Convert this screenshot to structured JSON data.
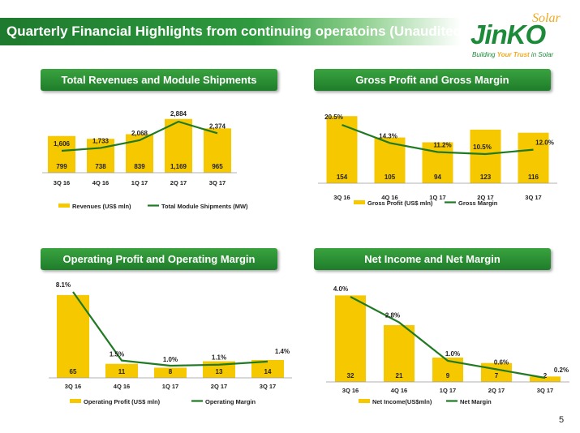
{
  "header": {
    "title": "Quarterly Financial Highlights from continuing operatoins (Unaudited)",
    "logo": {
      "solar": "Solar",
      "name": "JinKO",
      "tagline_a": "Building ",
      "tagline_b": "Your Trust",
      "tagline_c": " in Solar"
    }
  },
  "page_number": "5",
  "colors": {
    "bar": "#f6c800",
    "line": "#1f7a23",
    "header_green": "#2a8f35"
  },
  "panels": [
    {
      "heading": "Total Revenues and Module Shipments"
    },
    {
      "heading": "Gross Profit and Gross Margin"
    },
    {
      "heading": "Operating Profit and Operating Margin"
    },
    {
      "heading": "Net Income and Net Margin"
    }
  ],
  "chart_data": [
    {
      "type": "bar",
      "categories": [
        "3Q 16",
        "4Q 16",
        "1Q 17",
        "2Q 17",
        "3Q 17"
      ],
      "series": [
        {
          "name": "Revenues (US$ mln)",
          "kind": "bar",
          "values": [
            799,
            738,
            839,
            1169,
            965
          ],
          "labels": [
            "799",
            "738",
            "839",
            "1,169",
            "965"
          ]
        },
        {
          "name": "Total Module Shipments (MW)",
          "kind": "line",
          "values": [
            1606,
            1733,
            2068,
            2884,
            2374
          ],
          "labels": [
            "1,606",
            "1,733",
            "2,068",
            "2,884",
            "2,374"
          ]
        }
      ],
      "legend_position": "bottom"
    },
    {
      "type": "bar",
      "categories": [
        "3Q 16",
        "4Q 16",
        "1Q 17",
        "2Q 17",
        "3Q 17"
      ],
      "series": [
        {
          "name": "Gross Profit (US$ mln)",
          "kind": "bar",
          "values": [
            154,
            105,
            94,
            123,
            116
          ],
          "labels": [
            "154",
            "105",
            "94",
            "123",
            "116"
          ]
        },
        {
          "name": "Gross Margin",
          "kind": "line",
          "values": [
            20.5,
            14.3,
            11.2,
            10.5,
            12.0
          ],
          "labels": [
            "20.5%",
            "14.3%",
            "11.2%",
            "10.5%",
            "12.0%"
          ]
        }
      ],
      "legend_position": "bottom"
    },
    {
      "type": "bar",
      "categories": [
        "3Q 16",
        "4Q 16",
        "1Q 17",
        "2Q 17",
        "3Q 17"
      ],
      "series": [
        {
          "name": "Operating Profit (US$ mln)",
          "kind": "bar",
          "values": [
            65,
            11,
            8,
            13,
            14
          ],
          "labels": [
            "65",
            "11",
            "8",
            "13",
            "14"
          ]
        },
        {
          "name": "Operating Margin",
          "kind": "line",
          "values": [
            8.1,
            1.5,
            1.0,
            1.1,
            1.4
          ],
          "labels": [
            "8.1%",
            "1.5%",
            "1.0%",
            "1.1%",
            "1.4%"
          ]
        }
      ],
      "legend_position": "bottom"
    },
    {
      "type": "bar",
      "categories": [
        "3Q 16",
        "4Q 16",
        "1Q 17",
        "2Q 17",
        "3Q 17"
      ],
      "series": [
        {
          "name": "Net Income(US$mln)",
          "kind": "bar",
          "values": [
            32,
            21,
            9,
            7,
            2
          ],
          "labels": [
            "32",
            "21",
            "9",
            "7",
            "2"
          ]
        },
        {
          "name": "Net Margin",
          "kind": "line",
          "values": [
            4.0,
            2.8,
            1.0,
            0.6,
            0.2
          ],
          "labels": [
            "4.0%",
            "2.8%",
            "1.0%",
            "0.6%",
            "0.2%"
          ]
        }
      ],
      "legend_position": "bottom"
    }
  ]
}
